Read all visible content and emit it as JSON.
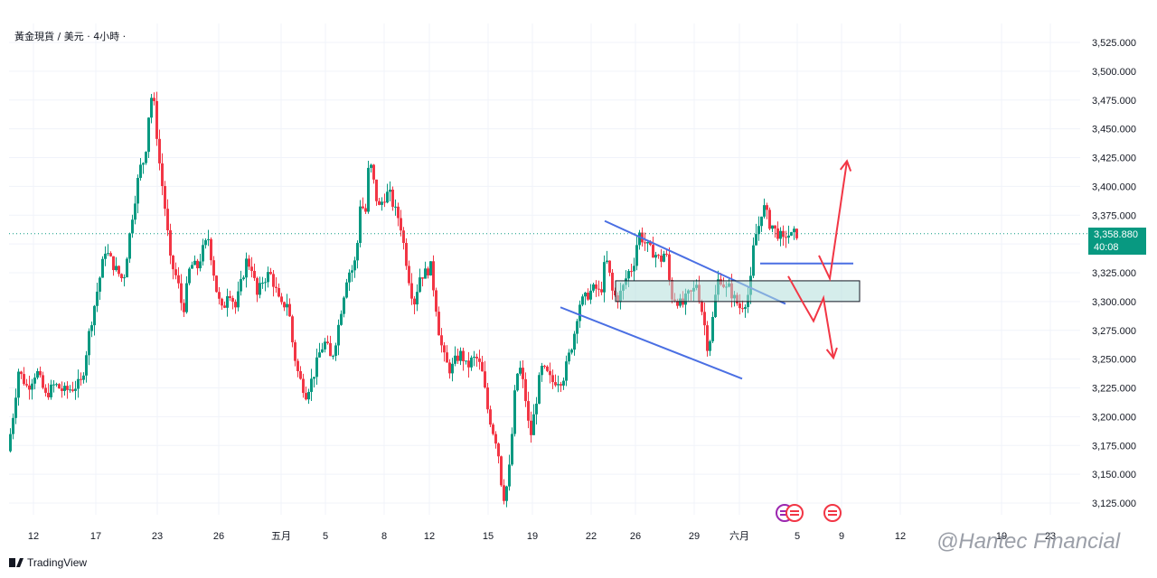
{
  "header": {
    "title": "黃金現貨 / 美元 · 4小時 ·"
  },
  "price_badge": {
    "price": "3,358.880",
    "countdown": "40:08"
  },
  "brand": {
    "label": "TradingView"
  },
  "watermark": {
    "text": "@Hantec Financial"
  },
  "colors": {
    "up": "#089981",
    "down": "#f23645",
    "trendline": "#4a6fe3",
    "arrow": "#f23645",
    "zone_fill": "#b2dfdb"
  },
  "chart_data": {
    "type": "candlestick",
    "symbol": "黃金現貨 / 美元",
    "timeframe": "4小時",
    "y_ticks": [
      "3,125.000",
      "3,150.000",
      "3,175.000",
      "3,200.000",
      "3,225.000",
      "3,250.000",
      "3,275.000",
      "3,300.000",
      "3,325.000",
      "3,350.000",
      "3,375.000",
      "3,400.000",
      "3,425.000",
      "3,450.000",
      "3,475.000",
      "3,500.000",
      "3,525.000"
    ],
    "ylim": [
      3113,
      3536
    ],
    "x_ticks": [
      "12",
      "17",
      "23",
      "26",
      "五月",
      "5",
      "8",
      "12",
      "15",
      "19",
      "22",
      "26",
      "29",
      "六月",
      "5",
      "9",
      "12",
      "19",
      "23"
    ],
    "current_price": 3358.88,
    "price_path": [
      [
        0,
        3170
      ],
      [
        5,
        3195
      ],
      [
        12,
        3240
      ],
      [
        22,
        3225
      ],
      [
        32,
        3240
      ],
      [
        42,
        3218
      ],
      [
        52,
        3228
      ],
      [
        62,
        3222
      ],
      [
        72,
        3225
      ],
      [
        82,
        3230
      ],
      [
        90,
        3272
      ],
      [
        98,
        3305
      ],
      [
        108,
        3345
      ],
      [
        118,
        3330
      ],
      [
        128,
        3318
      ],
      [
        138,
        3375
      ],
      [
        146,
        3415
      ],
      [
        152,
        3425
      ],
      [
        158,
        3480
      ],
      [
        162,
        3470
      ],
      [
        168,
        3420
      ],
      [
        175,
        3375
      ],
      [
        180,
        3335
      ],
      [
        188,
        3318
      ],
      [
        194,
        3290
      ],
      [
        202,
        3332
      ],
      [
        210,
        3330
      ],
      [
        216,
        3345
      ],
      [
        222,
        3355
      ],
      [
        226,
        3335
      ],
      [
        232,
        3305
      ],
      [
        238,
        3290
      ],
      [
        244,
        3312
      ],
      [
        252,
        3295
      ],
      [
        258,
        3315
      ],
      [
        264,
        3335
      ],
      [
        270,
        3330
      ],
      [
        276,
        3305
      ],
      [
        282,
        3318
      ],
      [
        290,
        3325
      ],
      [
        296,
        3312
      ],
      [
        302,
        3295
      ],
      [
        310,
        3300
      ],
      [
        316,
        3258
      ],
      [
        322,
        3235
      ],
      [
        330,
        3220
      ],
      [
        338,
        3235
      ],
      [
        346,
        3258
      ],
      [
        352,
        3265
      ],
      [
        358,
        3248
      ],
      [
        364,
        3270
      ],
      [
        370,
        3298
      ],
      [
        376,
        3325
      ],
      [
        382,
        3328
      ],
      [
        386,
        3340
      ],
      [
        390,
        3385
      ],
      [
        396,
        3378
      ],
      [
        400,
        3425
      ],
      [
        404,
        3408
      ],
      [
        410,
        3380
      ],
      [
        416,
        3390
      ],
      [
        422,
        3395
      ],
      [
        428,
        3380
      ],
      [
        434,
        3370
      ],
      [
        440,
        3340
      ],
      [
        446,
        3310
      ],
      [
        450,
        3300
      ],
      [
        456,
        3322
      ],
      [
        462,
        3325
      ],
      [
        468,
        3330
      ],
      [
        474,
        3295
      ],
      [
        478,
        3268
      ],
      [
        484,
        3248
      ],
      [
        490,
        3240
      ],
      [
        496,
        3250
      ],
      [
        502,
        3255
      ],
      [
        508,
        3242
      ],
      [
        514,
        3250
      ],
      [
        520,
        3250
      ],
      [
        526,
        3235
      ],
      [
        530,
        3210
      ],
      [
        536,
        3190
      ],
      [
        542,
        3175
      ],
      [
        548,
        3128
      ],
      [
        554,
        3145
      ],
      [
        558,
        3185
      ],
      [
        562,
        3230
      ],
      [
        566,
        3245
      ],
      [
        572,
        3222
      ],
      [
        578,
        3180
      ],
      [
        584,
        3210
      ],
      [
        590,
        3242
      ],
      [
        596,
        3238
      ],
      [
        602,
        3230
      ],
      [
        608,
        3232
      ],
      [
        614,
        3232
      ],
      [
        620,
        3250
      ],
      [
        626,
        3268
      ],
      [
        632,
        3298
      ],
      [
        638,
        3302
      ],
      [
        644,
        3308
      ],
      [
        650,
        3312
      ],
      [
        656,
        3306
      ],
      [
        660,
        3330
      ],
      [
        664,
        3335
      ],
      [
        668,
        3310
      ],
      [
        674,
        3302
      ],
      [
        680,
        3310
      ],
      [
        686,
        3325
      ],
      [
        692,
        3330
      ],
      [
        698,
        3360
      ],
      [
        704,
        3352
      ],
      [
        710,
        3345
      ],
      [
        716,
        3342
      ],
      [
        722,
        3335
      ],
      [
        728,
        3345
      ],
      [
        734,
        3305
      ],
      [
        740,
        3302
      ],
      [
        746,
        3296
      ],
      [
        752,
        3305
      ],
      [
        758,
        3308
      ],
      [
        762,
        3316
      ],
      [
        766,
        3300
      ],
      [
        770,
        3285
      ],
      [
        774,
        3262
      ],
      [
        778,
        3270
      ],
      [
        782,
        3300
      ],
      [
        786,
        3318
      ],
      [
        790,
        3320
      ],
      [
        794,
        3310
      ],
      [
        798,
        3312
      ],
      [
        802,
        3305
      ],
      [
        806,
        3300
      ],
      [
        810,
        3295
      ],
      [
        814,
        3298
      ],
      [
        818,
        3302
      ],
      [
        822,
        3318
      ],
      [
        826,
        3355
      ],
      [
        830,
        3362
      ],
      [
        834,
        3378
      ],
      [
        838,
        3382
      ],
      [
        842,
        3368
      ],
      [
        846,
        3366
      ],
      [
        850,
        3360
      ],
      [
        854,
        3358
      ],
      [
        858,
        3352
      ],
      [
        862,
        3360
      ],
      [
        866,
        3356
      ],
      [
        870,
        3358.88
      ]
    ],
    "annotations": {
      "channel_upper": [
        [
          3370,
          669
        ],
        [
          3298,
          869
        ]
      ],
      "channel_lower": [
        [
          3295,
          620
        ],
        [
          3233,
          821
        ]
      ],
      "zone": {
        "x_from": 681,
        "x_to": 951,
        "y_top": 3318,
        "y_bottom": 3300
      },
      "support_line": {
        "x_from": 841,
        "x_to": 944,
        "y": 3333
      },
      "arrow_up": [
        [
          3340,
          906
        ],
        [
          3320,
          918
        ],
        [
          3422,
          937
        ]
      ],
      "arrow_down": [
        [
          3322,
          872
        ],
        [
          3298,
          889
        ],
        [
          3283,
          900
        ],
        [
          3303,
          911
        ],
        [
          3251,
          922
        ]
      ]
    }
  }
}
